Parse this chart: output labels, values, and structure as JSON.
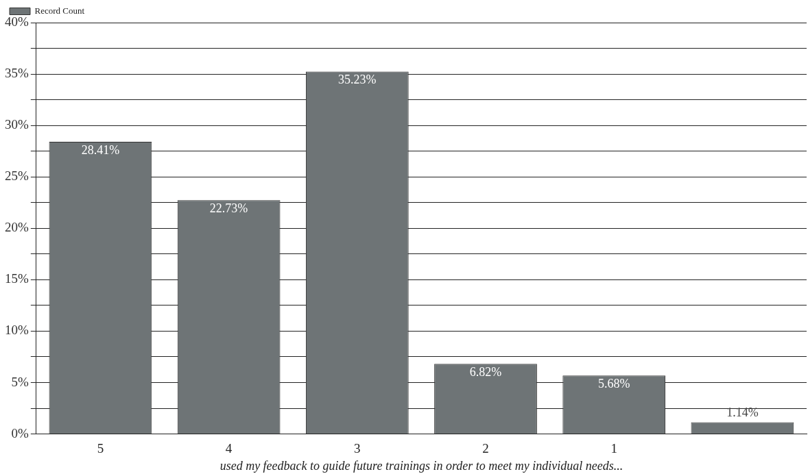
{
  "chart_data": {
    "type": "bar",
    "xlabel": "used my feedback to guide future trainings in order to meet my individual needs...",
    "categories": [
      "5",
      "4",
      "3",
      "2",
      "1",
      null
    ],
    "series": [
      {
        "name": "Record Count",
        "color": "#6e7476",
        "values": [
          28.41,
          22.73,
          35.23,
          6.82,
          5.68,
          1.14
        ],
        "value_labels": [
          "28.41%",
          "22.73%",
          "35.23%",
          "6.82%",
          "5.68%",
          "1.14%"
        ]
      }
    ],
    "ylim": [
      0,
      40
    ],
    "yticks": [
      {
        "value": 0,
        "label": "0%"
      },
      {
        "value": 2.5,
        "label": null
      },
      {
        "value": 5,
        "label": "5%"
      },
      {
        "value": 7.5,
        "label": null
      },
      {
        "value": 10,
        "label": "10%"
      },
      {
        "value": 12.5,
        "label": null
      },
      {
        "value": 15,
        "label": "15%"
      },
      {
        "value": 17.5,
        "label": null
      },
      {
        "value": 20,
        "label": "20%"
      },
      {
        "value": 22.5,
        "label": null
      },
      {
        "value": 25,
        "label": "25%"
      },
      {
        "value": 27.5,
        "label": null
      },
      {
        "value": 30,
        "label": "30%"
      },
      {
        "value": 32.5,
        "label": null
      },
      {
        "value": 35,
        "label": "35%"
      },
      {
        "value": 37.5,
        "label": null
      },
      {
        "value": 40,
        "label": "40%"
      }
    ],
    "grid": "y",
    "legend": "top left"
  }
}
